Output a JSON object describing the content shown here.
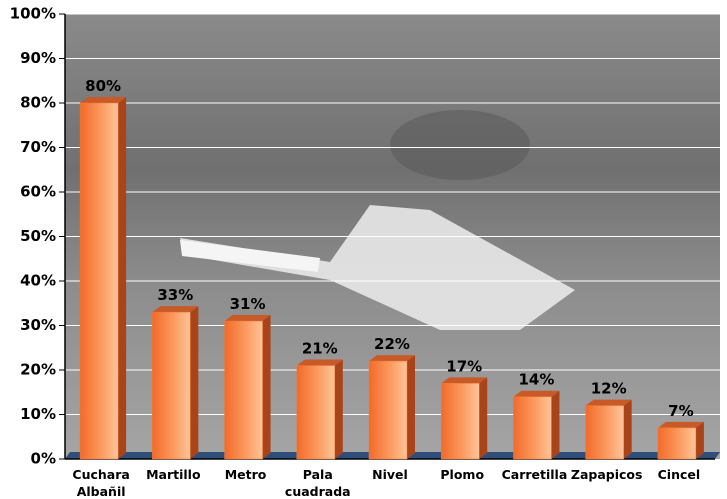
{
  "chart_data": {
    "type": "bar",
    "categories": [
      "Cuchara Albañil",
      "Martillo",
      "Metro",
      "Pala cuadrada",
      "Nivel",
      "Plomo",
      "Carretilla",
      "Zapapicos",
      "Cincel"
    ],
    "values": [
      80,
      33,
      31,
      21,
      22,
      17,
      14,
      12,
      7
    ],
    "value_labels": [
      "80%",
      "33%",
      "31%",
      "21%",
      "22%",
      "17%",
      "14%",
      "12%",
      "7%"
    ],
    "color": "#f27a3a",
    "ylim": [
      0,
      100
    ],
    "yticks": [
      {
        "value": 0,
        "label": "0%"
      },
      {
        "value": 10,
        "label": "10%"
      },
      {
        "value": 20,
        "label": "20%"
      },
      {
        "value": 30,
        "label": "30%"
      },
      {
        "value": 40,
        "label": "40%"
      },
      {
        "value": 50,
        "label": "50%"
      },
      {
        "value": 60,
        "label": "60%"
      },
      {
        "value": 70,
        "label": "70%"
      },
      {
        "value": 80,
        "label": "80%"
      },
      {
        "value": 90,
        "label": "90%"
      },
      {
        "value": 100,
        "label": "100%"
      }
    ],
    "grid": true
  }
}
